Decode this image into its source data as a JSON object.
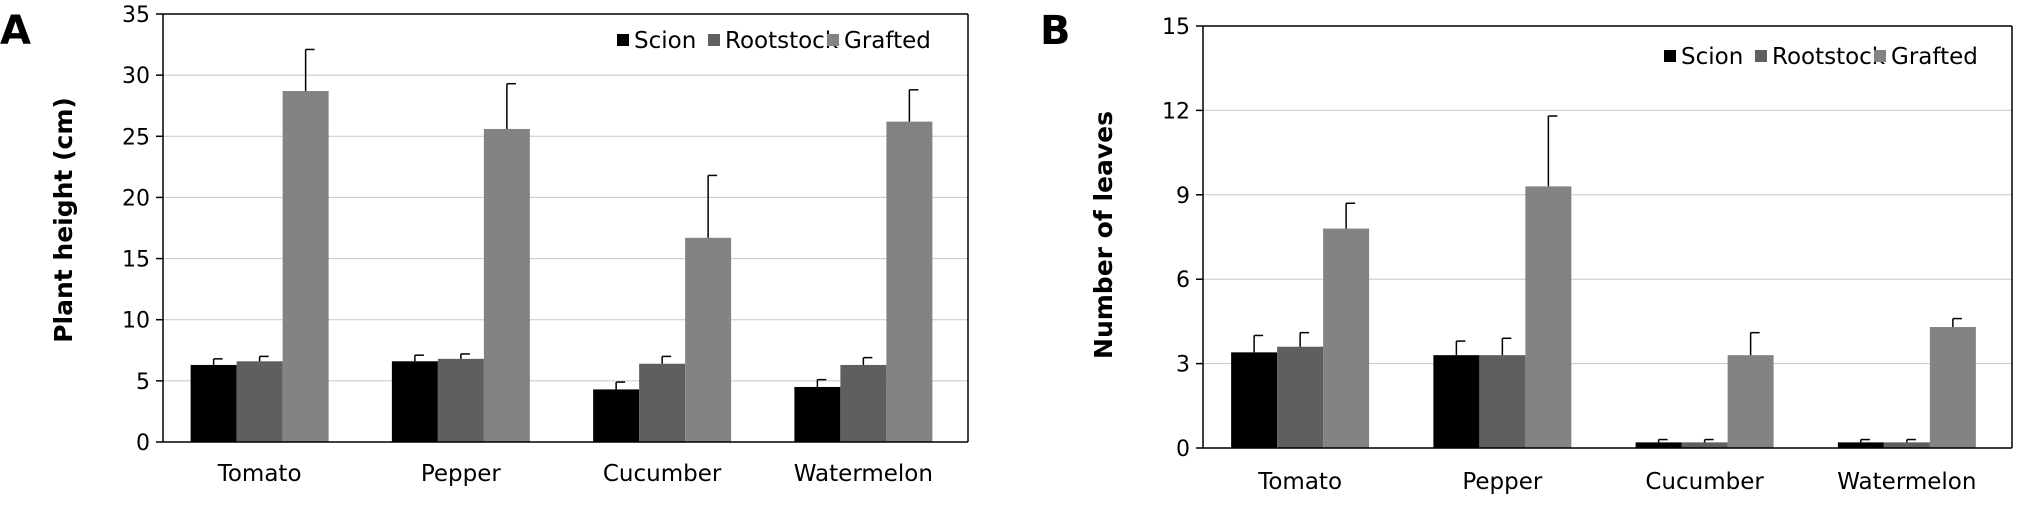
{
  "colors": {
    "Scion": "#000000",
    "Rootstock": "#5f5f5f",
    "Grafted": "#838383"
  },
  "chart_data": [
    {
      "type": "bar",
      "panel_label": "A",
      "categories": [
        "Tomato",
        "Pepper",
        "Cucumber",
        "Watermelon"
      ],
      "ylabel": "Plant height (cm)",
      "ylim": [
        0,
        35
      ],
      "yticks": [
        0,
        5,
        10,
        15,
        20,
        25,
        30,
        35
      ],
      "legend": "top-right",
      "grid": true,
      "series": [
        {
          "name": "Scion",
          "values": [
            6.3,
            6.6,
            4.3,
            4.5
          ],
          "errors": [
            0.5,
            0.5,
            0.6,
            0.6
          ]
        },
        {
          "name": "Rootstock",
          "values": [
            6.6,
            6.8,
            6.4,
            6.3
          ],
          "errors": [
            0.4,
            0.4,
            0.6,
            0.6
          ]
        },
        {
          "name": "Grafted",
          "values": [
            28.7,
            25.6,
            16.7,
            26.2
          ],
          "errors": [
            3.4,
            3.7,
            5.1,
            2.6
          ]
        }
      ]
    },
    {
      "type": "bar",
      "panel_label": "B",
      "categories": [
        "Tomato",
        "Pepper",
        "Cucumber",
        "Watermelon"
      ],
      "ylabel": "Number of leaves",
      "ylim": [
        0,
        15
      ],
      "yticks": [
        0,
        3,
        6,
        9,
        12,
        15
      ],
      "legend": "top-right",
      "grid": true,
      "series": [
        {
          "name": "Scion",
          "values": [
            3.4,
            3.3,
            0.2,
            0.2
          ],
          "errors": [
            0.6,
            0.5,
            0.1,
            0.1
          ]
        },
        {
          "name": "Rootstock",
          "values": [
            3.6,
            3.3,
            0.2,
            0.2
          ],
          "errors": [
            0.5,
            0.6,
            0.1,
            0.1
          ]
        },
        {
          "name": "Grafted",
          "values": [
            7.8,
            9.3,
            3.3,
            4.3
          ],
          "errors": [
            0.9,
            2.5,
            0.8,
            0.3
          ]
        }
      ]
    }
  ]
}
